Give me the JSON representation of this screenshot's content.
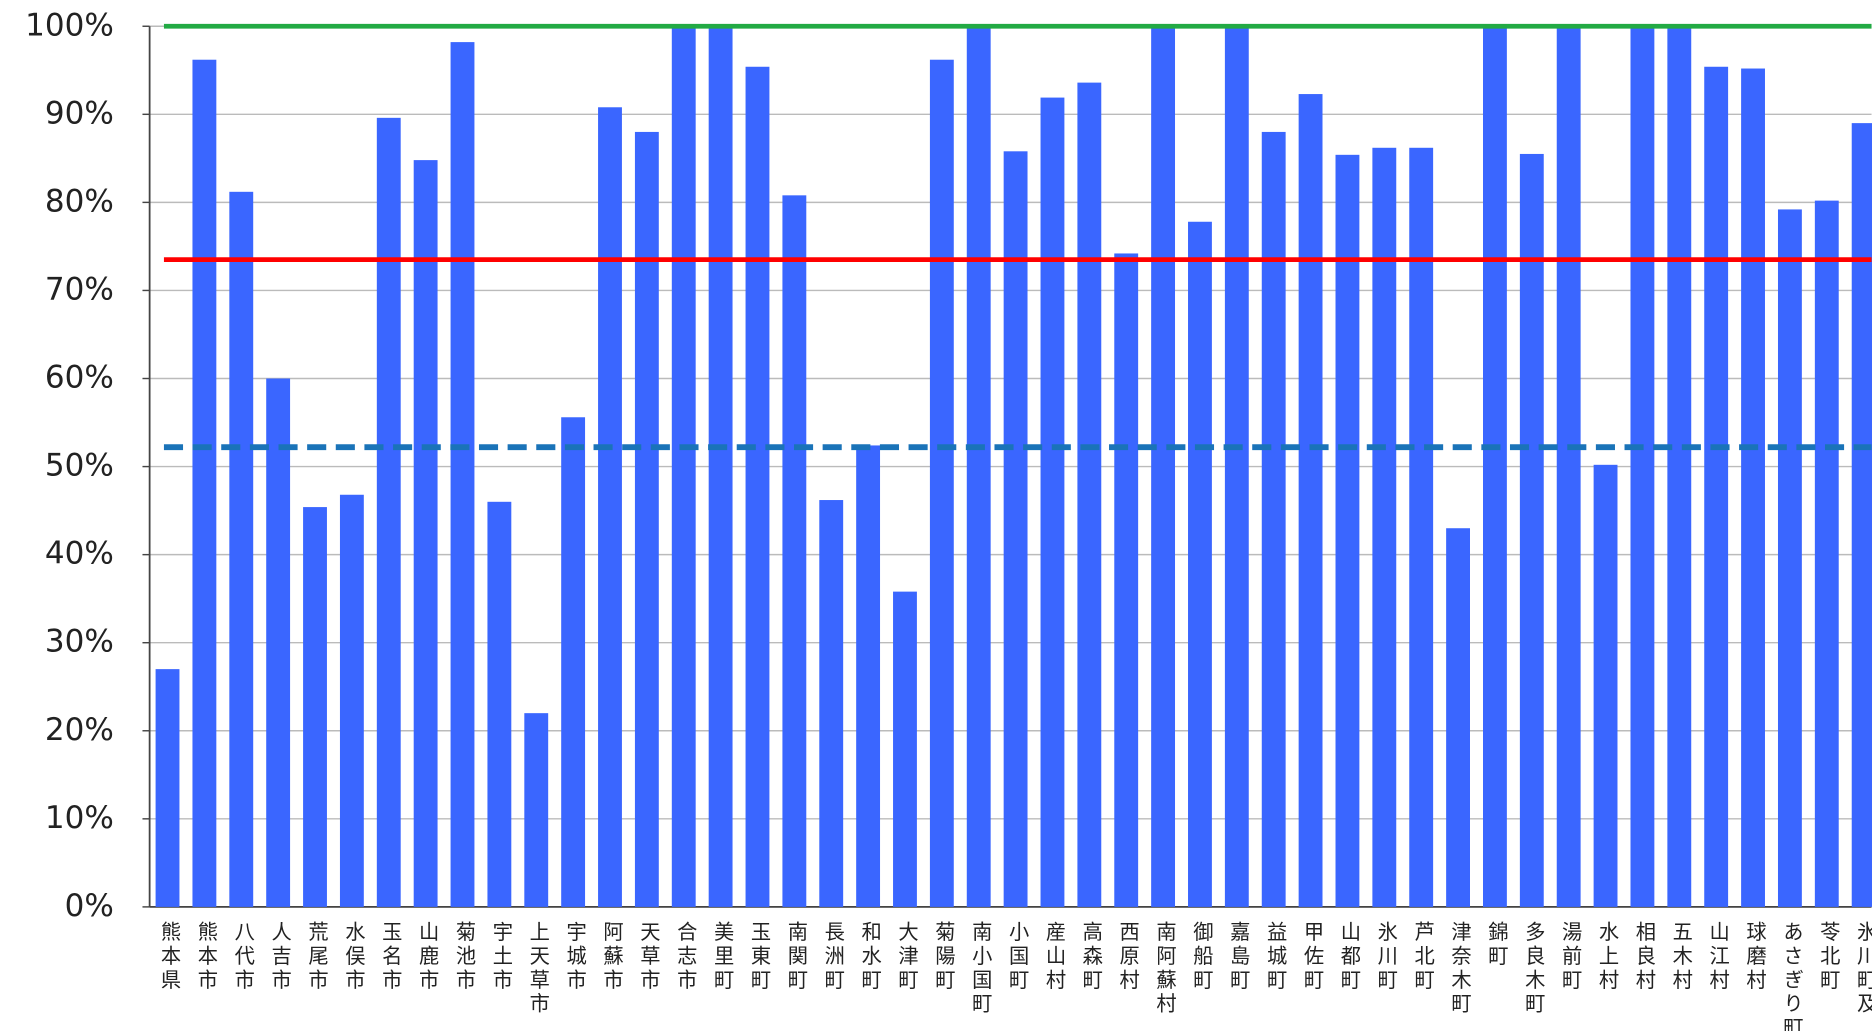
{
  "chart_data": {
    "type": "bar",
    "categories": [
      "熊本県",
      "熊本市",
      "八代市",
      "人吉市",
      "荒尾市",
      "水俣市",
      "玉名市",
      "山鹿市",
      "菊池市",
      "宇土市",
      "上天草市",
      "宇城市",
      "阿蘇市",
      "天草市",
      "合志市",
      "美里町",
      "玉東町",
      "南関町",
      "長洲町",
      "和水町",
      "大津町",
      "菊陽町",
      "南小国町",
      "小国町",
      "産山村",
      "高森町",
      "西原村",
      "南阿蘇村",
      "御船町",
      "嘉島町",
      "益城町",
      "甲佐町",
      "山都町",
      "氷川町",
      "芦北町",
      "津奈木町",
      "錦町",
      "多良木町",
      "湯前町",
      "水上村",
      "相良村",
      "五木村",
      "山江村",
      "球磨村",
      "あさぎり町",
      "苓北町",
      "氷川町及…"
    ],
    "values": [
      27,
      96.2,
      81.2,
      60,
      45.4,
      46.8,
      89.6,
      84.8,
      98.2,
      46,
      22,
      55.6,
      90.8,
      88,
      100,
      100,
      95.4,
      80.8,
      46.2,
      52.4,
      35.8,
      96.2,
      100,
      85.8,
      91.9,
      93.6,
      74.2,
      100,
      77.8,
      100,
      88,
      92.3,
      85.4,
      86.2,
      86.2,
      43,
      100,
      85.5,
      100,
      50.2,
      100,
      100,
      95.4,
      95.2,
      79.2,
      80.2,
      89
    ],
    "color": "#3a66ff",
    "ylim": [
      0,
      100
    ],
    "yticks": [
      {
        "value": 0,
        "label": "0%"
      },
      {
        "value": 10,
        "label": "10%"
      },
      {
        "value": 20,
        "label": "20%"
      },
      {
        "value": 30,
        "label": "30%"
      },
      {
        "value": 40,
        "label": "40%"
      },
      {
        "value": 50,
        "label": "50%"
      },
      {
        "value": 60,
        "label": "60%"
      },
      {
        "value": 70,
        "label": "70%"
      },
      {
        "value": 80,
        "label": "80%"
      },
      {
        "value": 90,
        "label": "90%"
      },
      {
        "value": 100,
        "label": "100%"
      }
    ],
    "grid": true,
    "reference_lines": [
      {
        "value": 100,
        "color": "#22aa44",
        "dashed": false
      },
      {
        "value": 73.5,
        "color": "#ff0000",
        "dashed": false
      },
      {
        "value": 52.2,
        "color": "#1a73b8",
        "dashed": true
      }
    ]
  }
}
